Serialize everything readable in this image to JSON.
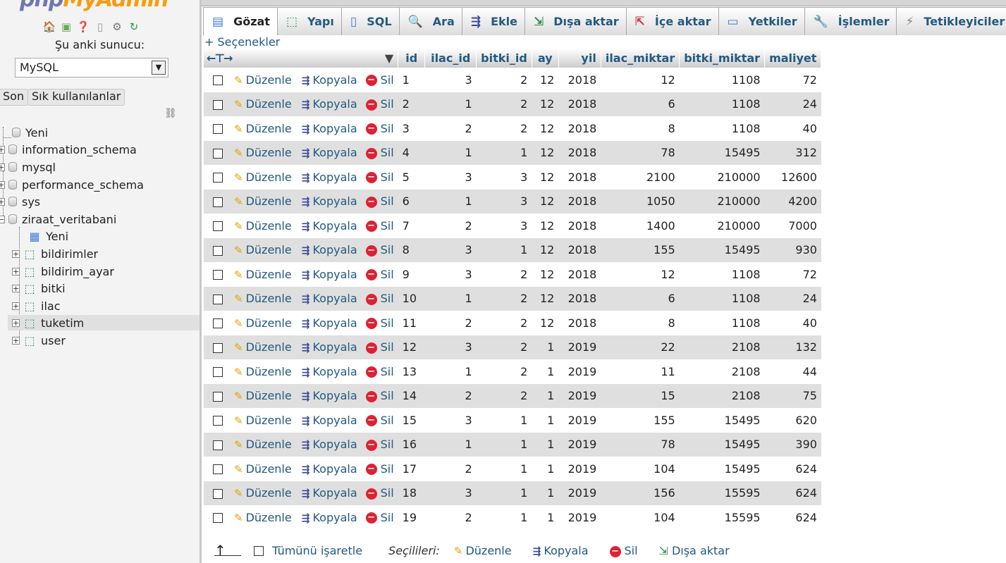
{
  "sidebar": {
    "logo": {
      "part1": "php",
      "part2": "MyAdmin"
    },
    "icons": [
      "home-icon",
      "exit-icon",
      "help-icon",
      "docs-icon",
      "settings-icon",
      "reload-icon"
    ],
    "server_label": "Şu anki sunucu:",
    "server_value": "MySQL",
    "recent_button": "Son",
    "favorites_button": "Sık kullanılanlar",
    "tree": {
      "new_label": "Yeni",
      "databases": [
        "information_schema",
        "mysql",
        "performance_schema",
        "sys",
        "ziraat_veritabani"
      ],
      "sub_new_label": "Yeni",
      "tables": [
        "bildirimler",
        "bildirim_ayar",
        "bitki",
        "ilac",
        "tuketim",
        "user"
      ],
      "selected_table": "tuketim"
    }
  },
  "main": {
    "tabs": [
      {
        "label": "Gözat",
        "icon": "browse-icon"
      },
      {
        "label": "Yapı",
        "icon": "structure-icon"
      },
      {
        "label": "SQL",
        "icon": "sql-icon"
      },
      {
        "label": "Ara",
        "icon": "search-icon"
      },
      {
        "label": "Ekle",
        "icon": "insert-icon"
      },
      {
        "label": "Dışa aktar",
        "icon": "export-icon"
      },
      {
        "label": "İçe aktar",
        "icon": "import-icon"
      },
      {
        "label": "Yetkiler",
        "icon": "privileges-icon"
      },
      {
        "label": "İşlemler",
        "icon": "operations-icon"
      },
      {
        "label": "Tetikleyiciler",
        "icon": "triggers-icon"
      }
    ],
    "options_link": "+ Seçenekler",
    "columns": [
      "id",
      "ilac_id",
      "bitki_id",
      "ay",
      "yil",
      "ilac_miktar",
      "bitki_miktar",
      "maliyet"
    ],
    "actions": {
      "edit": "Düzenle",
      "copy": "Kopyala",
      "delete": "Sil"
    },
    "rows": [
      [
        "1",
        "3",
        "2",
        "12",
        "2018",
        "12",
        "1108",
        "72"
      ],
      [
        "2",
        "1",
        "2",
        "12",
        "2018",
        "6",
        "1108",
        "24"
      ],
      [
        "3",
        "2",
        "2",
        "12",
        "2018",
        "8",
        "1108",
        "40"
      ],
      [
        "4",
        "1",
        "1",
        "12",
        "2018",
        "78",
        "15495",
        "312"
      ],
      [
        "5",
        "3",
        "3",
        "12",
        "2018",
        "2100",
        "210000",
        "12600"
      ],
      [
        "6",
        "1",
        "3",
        "12",
        "2018",
        "1050",
        "210000",
        "4200"
      ],
      [
        "7",
        "2",
        "3",
        "12",
        "2018",
        "1400",
        "210000",
        "7000"
      ],
      [
        "8",
        "3",
        "1",
        "12",
        "2018",
        "155",
        "15495",
        "930"
      ],
      [
        "9",
        "3",
        "2",
        "12",
        "2018",
        "12",
        "1108",
        "72"
      ],
      [
        "10",
        "1",
        "2",
        "12",
        "2018",
        "6",
        "1108",
        "24"
      ],
      [
        "11",
        "2",
        "2",
        "12",
        "2018",
        "8",
        "1108",
        "40"
      ],
      [
        "12",
        "3",
        "2",
        "1",
        "2019",
        "22",
        "2108",
        "132"
      ],
      [
        "13",
        "1",
        "2",
        "1",
        "2019",
        "11",
        "2108",
        "44"
      ],
      [
        "14",
        "2",
        "2",
        "1",
        "2019",
        "15",
        "2108",
        "75"
      ],
      [
        "15",
        "3",
        "1",
        "1",
        "2019",
        "155",
        "15495",
        "620"
      ],
      [
        "16",
        "1",
        "1",
        "1",
        "2019",
        "78",
        "15495",
        "390"
      ],
      [
        "17",
        "2",
        "1",
        "1",
        "2019",
        "104",
        "15495",
        "624"
      ],
      [
        "18",
        "3",
        "1",
        "1",
        "2019",
        "156",
        "15595",
        "624"
      ],
      [
        "19",
        "2",
        "1",
        "1",
        "2019",
        "104",
        "15595",
        "624"
      ]
    ],
    "footer": {
      "check_all": "Tümünü işaretle",
      "with_selected": "Seçilileri:",
      "edit": "Düzenle",
      "copy": "Kopyala",
      "delete": "Sil",
      "export": "Dışa aktar"
    }
  }
}
